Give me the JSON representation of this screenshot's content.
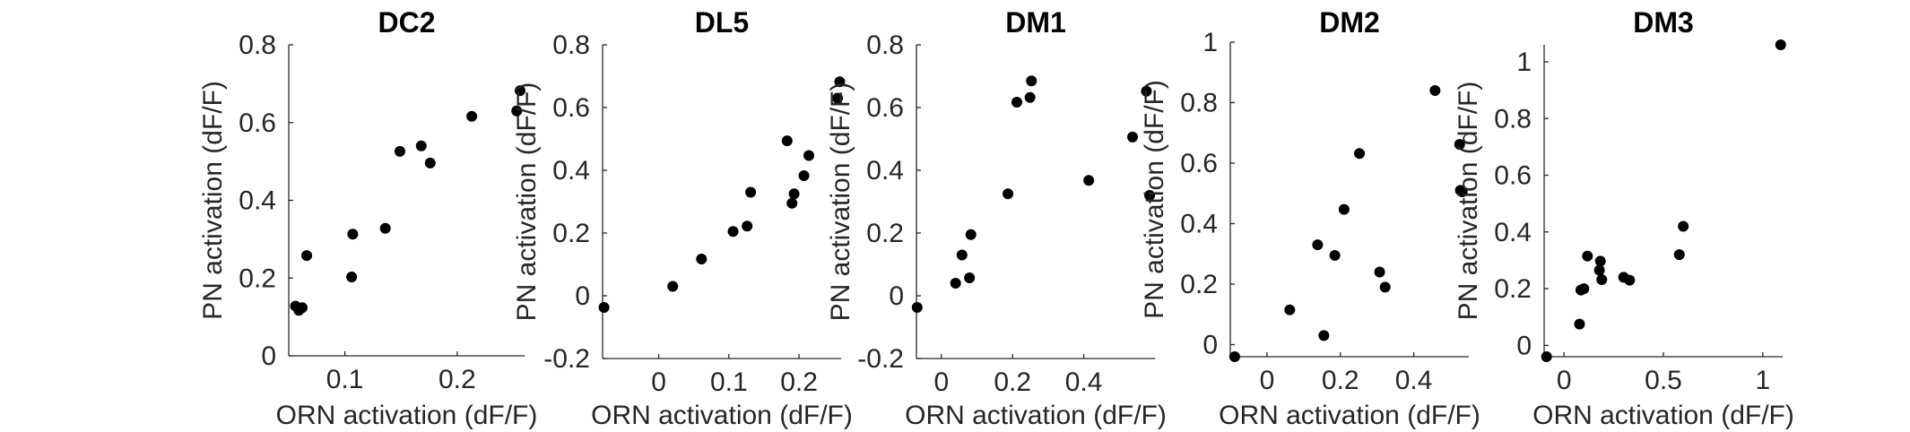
{
  "chart_data": [
    {
      "type": "scatter",
      "title": "DC2",
      "xlabel": "ORN activation (dF/F)",
      "ylabel": "PN activation (dF/F)",
      "xlim": [
        0.05,
        0.26
      ],
      "ylim": [
        0,
        0.8
      ],
      "xticks": [
        0.1,
        0.2
      ],
      "xtick_labels": [
        "0.1",
        "0.2"
      ],
      "yticks": [
        0,
        0.2,
        0.4,
        0.6,
        0.8
      ],
      "ytick_labels": [
        "0",
        "0.2",
        "0.4",
        "0.6",
        "0.8"
      ],
      "grid": false,
      "color": "#000000",
      "points": [
        [
          0.056,
          0.128
        ],
        [
          0.059,
          0.117
        ],
        [
          0.062,
          0.124
        ],
        [
          0.066,
          0.258
        ],
        [
          0.106,
          0.203
        ],
        [
          0.107,
          0.313
        ],
        [
          0.136,
          0.328
        ],
        [
          0.149,
          0.526
        ],
        [
          0.168,
          0.54
        ],
        [
          0.176,
          0.496
        ],
        [
          0.213,
          0.616
        ],
        [
          0.253,
          0.63
        ],
        [
          0.256,
          0.682
        ]
      ]
    },
    {
      "type": "scatter",
      "title": "DL5",
      "xlabel": "ORN activation (dF/F)",
      "ylabel": "PN activation (dF/F)",
      "xlim": [
        -0.08,
        0.26
      ],
      "ylim": [
        -0.2,
        0.8
      ],
      "xticks": [
        0,
        0.1,
        0.2
      ],
      "xtick_labels": [
        "0",
        "0.1",
        "0.2"
      ],
      "yticks": [
        -0.2,
        0,
        0.2,
        0.4,
        0.6,
        0.8
      ],
      "ytick_labels": [
        "-0.2",
        "0",
        "0.2",
        "0.4",
        "0.6",
        "0.8"
      ],
      "grid": false,
      "color": "#000000",
      "points": [
        [
          -0.078,
          -0.037
        ],
        [
          0.02,
          0.03
        ],
        [
          0.061,
          0.117
        ],
        [
          0.106,
          0.205
        ],
        [
          0.126,
          0.222
        ],
        [
          0.131,
          0.33
        ],
        [
          0.183,
          0.494
        ],
        [
          0.19,
          0.295
        ],
        [
          0.193,
          0.325
        ],
        [
          0.207,
          0.383
        ],
        [
          0.214,
          0.447
        ],
        [
          0.255,
          0.63
        ],
        [
          0.258,
          0.682
        ]
      ]
    },
    {
      "type": "scatter",
      "title": "DM1",
      "xlabel": "ORN activation (dF/F)",
      "ylabel": "PN activation (dF/F)",
      "xlim": [
        -0.07,
        0.6
      ],
      "ylim": [
        -0.2,
        0.8
      ],
      "xticks": [
        0,
        0.2,
        0.4
      ],
      "xtick_labels": [
        "0",
        "0.2",
        "0.4"
      ],
      "yticks": [
        -0.2,
        0,
        0.2,
        0.4,
        0.6,
        0.8
      ],
      "ytick_labels": [
        "-0.2",
        "0",
        "0.2",
        "0.4",
        "0.6",
        "0.8"
      ],
      "grid": false,
      "color": "#000000",
      "points": [
        [
          -0.068,
          -0.037
        ],
        [
          0.04,
          0.04
        ],
        [
          0.058,
          0.13
        ],
        [
          0.079,
          0.057
        ],
        [
          0.083,
          0.195
        ],
        [
          0.187,
          0.325
        ],
        [
          0.212,
          0.617
        ],
        [
          0.249,
          0.632
        ],
        [
          0.253,
          0.685
        ],
        [
          0.414,
          0.368
        ],
        [
          0.537,
          0.506
        ],
        [
          0.576,
          0.652
        ],
        [
          0.585,
          0.32
        ]
      ]
    },
    {
      "type": "scatter",
      "title": "DM2",
      "xlabel": "ORN activation (dF/F)",
      "ylabel": "PN activation (dF/F)",
      "xlim": [
        -0.1,
        0.55
      ],
      "ylim": [
        -0.04,
        1
      ],
      "xticks": [
        0,
        0.2,
        0.4
      ],
      "xtick_labels": [
        "0",
        "0.2",
        "0.4"
      ],
      "yticks": [
        0,
        0.2,
        0.4,
        0.6,
        0.8,
        1
      ],
      "ytick_labels": [
        "0",
        "0.2",
        "0.4",
        "0.6",
        "0.8",
        "1"
      ],
      "grid": false,
      "color": "#000000",
      "points": [
        [
          -0.088,
          -0.04
        ],
        [
          0.062,
          0.115
        ],
        [
          0.138,
          0.33
        ],
        [
          0.155,
          0.03
        ],
        [
          0.185,
          0.295
        ],
        [
          0.21,
          0.447
        ],
        [
          0.252,
          0.632
        ],
        [
          0.307,
          0.24
        ],
        [
          0.322,
          0.19
        ],
        [
          0.458,
          0.84
        ],
        [
          0.525,
          0.662
        ],
        [
          0.527,
          0.51
        ],
        [
          0.532,
          0.505
        ]
      ]
    },
    {
      "type": "scatter",
      "title": "DM3",
      "xlabel": "ORN activation (dF/F)",
      "ylabel": "PN activation (dF/F)",
      "xlim": [
        -0.1,
        1.1
      ],
      "ylim": [
        -0.04,
        1.06
      ],
      "xticks": [
        0,
        0.5,
        1
      ],
      "xtick_labels": [
        "0",
        "0.5",
        "1"
      ],
      "yticks": [
        0,
        0.2,
        0.4,
        0.6,
        0.8,
        1
      ],
      "ytick_labels": [
        "0",
        "0.2",
        "0.4",
        "0.6",
        "0.8",
        "1"
      ],
      "grid": false,
      "color": "#000000",
      "points": [
        [
          -0.088,
          -0.04
        ],
        [
          0.078,
          0.075
        ],
        [
          0.085,
          0.195
        ],
        [
          0.1,
          0.2
        ],
        [
          0.118,
          0.315
        ],
        [
          0.178,
          0.265
        ],
        [
          0.183,
          0.297
        ],
        [
          0.19,
          0.232
        ],
        [
          0.3,
          0.24
        ],
        [
          0.33,
          0.23
        ],
        [
          0.58,
          0.32
        ],
        [
          0.6,
          0.42
        ],
        [
          1.09,
          1.06
        ]
      ]
    }
  ]
}
